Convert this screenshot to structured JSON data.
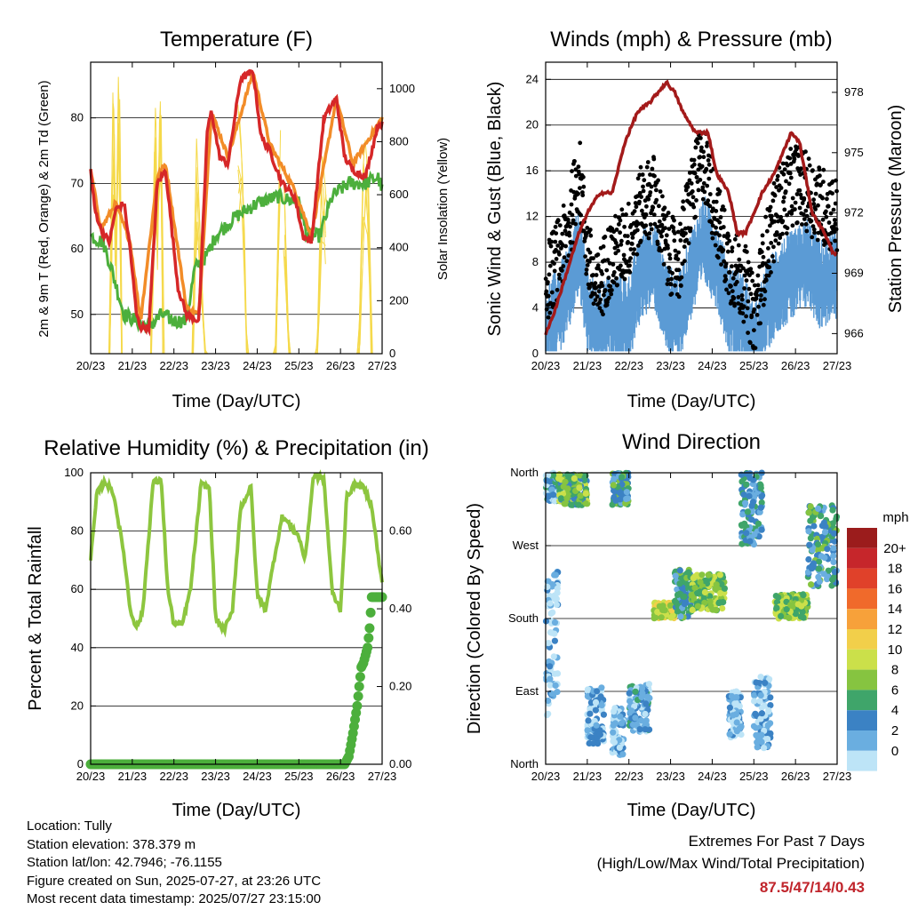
{
  "charts": {
    "temperature": {
      "title": "Temperature (F)",
      "xlabel": "Time (Day/UTC)",
      "ylabel_left": "2m & 9m T (Red, Orange) & 2m Td (Green)",
      "ylabel_right": "Solar Insolation (Yellow)"
    },
    "winds": {
      "title": "Winds (mph) & Pressure (mb)",
      "xlabel": "Time (Day/UTC)",
      "ylabel_left": "Sonic Wind & Gust (Blue, Black)",
      "ylabel_right": "Station Pressure (Maroon)"
    },
    "humidity": {
      "title": "Relative Humidity (%) & Precipitation (in)",
      "xlabel": "Time (Day/UTC)",
      "ylabel_left": "Percent & Total Rainfall"
    },
    "direction": {
      "title": "Wind Direction",
      "xlabel": "Time (Day/UTC)",
      "ylabel_left": "Direction (Colored By Speed)",
      "legend_title": "mph"
    }
  },
  "footer": {
    "location": "Location: Tully",
    "elevation": "Station elevation: 378.379 m",
    "latlon": "Station lat/lon: 42.7946; -76.1155",
    "created": "Figure created on Sun, 2025-07-27, at 23:26 UTC",
    "recent": "Most recent data timestamp: 2025/07/27 23:15:00"
  },
  "extremes": {
    "heading": "Extremes For Past 7 Days",
    "subheading": "(High/Low/Max Wind/Total Precipitation)",
    "values": "87.5/47/14/0.43",
    "value_color": "#c0242b"
  },
  "colors": {
    "temp_2m": "#d62728",
    "temp_9m": "#f28c28",
    "dewpoint": "#4caf3c",
    "solar": "#f5d94a",
    "wind": "#5b9bd5",
    "gust": "#000000",
    "pressure": "#a31a1a",
    "rh": "#8dc63f",
    "precip": "#4caf3c"
  },
  "chart_data": [
    {
      "type": "line",
      "title": "Temperature (F)",
      "x_ticks": [
        "20/23",
        "21/23",
        "22/23",
        "23/23",
        "24/23",
        "25/23",
        "26/23",
        "27/23"
      ],
      "xlim": [
        0,
        7
      ],
      "ylim": [
        44,
        88.5
      ],
      "yticks": [
        50,
        60,
        70,
        80
      ],
      "ylim_right": [
        0,
        1100
      ],
      "yticks_right": [
        0,
        200,
        400,
        600,
        800,
        1000
      ],
      "grid": true,
      "series": [
        {
          "name": "2m T",
          "color": "red",
          "axis": "left",
          "x": [
            0,
            0.1,
            0.25,
            0.45,
            0.6,
            0.8,
            0.95,
            1.1,
            1.2,
            1.4,
            1.6,
            1.8,
            2.1,
            2.3,
            2.6,
            2.8,
            2.9,
            3.1,
            3.3,
            3.6,
            3.9,
            4.1,
            4.3,
            4.6,
            4.9,
            5.1,
            5.3,
            5.6,
            5.9,
            6.1,
            6.3,
            6.6,
            6.9,
            7
          ],
          "values": [
            72,
            66,
            63,
            61,
            66,
            67,
            60,
            50,
            48,
            48,
            70,
            72,
            54,
            50,
            49,
            78,
            81,
            74,
            73,
            86,
            87,
            77,
            75,
            70,
            68,
            62,
            61,
            80,
            83,
            74,
            72,
            71,
            79,
            79
          ]
        },
        {
          "name": "9m T",
          "color": "orange",
          "axis": "left",
          "x": [
            0,
            0.25,
            0.6,
            0.95,
            1.2,
            1.6,
            1.8,
            2.3,
            2.6,
            2.9,
            3.3,
            3.9,
            4.3,
            4.9,
            5.3,
            5.9,
            6.3,
            6.9,
            7
          ],
          "values": [
            72,
            63,
            67,
            61,
            49,
            71,
            73,
            51,
            50,
            81,
            74,
            87,
            76,
            69,
            62,
            83,
            73,
            79,
            80
          ]
        },
        {
          "name": "2m Td",
          "color": "green",
          "axis": "left",
          "x": [
            0,
            0.3,
            0.5,
            0.8,
            1.1,
            1.4,
            1.7,
            2.0,
            2.3,
            2.5,
            2.8,
            3.0,
            3.5,
            4.0,
            4.5,
            5.0,
            5.2,
            5.5,
            5.8,
            6.2,
            6.6,
            6.9,
            7
          ],
          "values": [
            62,
            61,
            57,
            50,
            49,
            48,
            50,
            49,
            49,
            57,
            59,
            62,
            65,
            67,
            68,
            67,
            62,
            62,
            68,
            70,
            70,
            71,
            69
          ]
        },
        {
          "name": "Solar",
          "color": "yellow",
          "axis": "right",
          "x": [
            0.45,
            0.55,
            0.6,
            0.68,
            0.75,
            1.45,
            1.55,
            1.6,
            1.68,
            1.75,
            2.45,
            2.55,
            2.62,
            2.75,
            3.45,
            3.55,
            3.65,
            3.75,
            4.45,
            4.55,
            4.65,
            4.75,
            5.45,
            5.55,
            5.65,
            5.75,
            6.45,
            6.55,
            6.65,
            6.75
          ],
          "values": [
            0,
            1000,
            400,
            1100,
            0,
            0,
            1100,
            500,
            1050,
            0,
            0,
            800,
            600,
            0,
            0,
            900,
            700,
            0,
            0,
            850,
            650,
            0,
            0,
            800,
            600,
            0,
            0,
            820,
            750,
            0
          ]
        }
      ]
    },
    {
      "type": "line",
      "title": "Winds (mph) & Pressure (mb)",
      "x_ticks": [
        "20/23",
        "21/23",
        "22/23",
        "23/23",
        "24/23",
        "25/23",
        "26/23",
        "27/23"
      ],
      "xlim": [
        0,
        7
      ],
      "ylim": [
        0,
        25.5
      ],
      "yticks": [
        0,
        4,
        8,
        12,
        16,
        20,
        24
      ],
      "ylim_right": [
        965,
        979.5
      ],
      "yticks_right": [
        966,
        969,
        972,
        975,
        978
      ],
      "grid": true,
      "series": [
        {
          "name": "Sonic Wind",
          "color": "blue",
          "axis": "left",
          "x": [
            0,
            0.5,
            0.8,
            1.0,
            1.2,
            1.5,
            2.0,
            2.3,
            2.6,
            2.9,
            3.2,
            3.5,
            3.8,
            4.1,
            4.4,
            4.8,
            5.0,
            5.3,
            5.6,
            6.0,
            6.3,
            6.6,
            7
          ],
          "values": [
            3,
            6,
            10,
            5,
            3,
            4,
            4,
            8,
            9,
            5,
            4,
            8,
            11,
            9,
            5,
            4,
            1,
            5,
            7,
            8,
            9,
            7,
            8
          ]
        },
        {
          "name": "Gust",
          "color": "black",
          "axis": "left",
          "x": [
            0,
            0.5,
            0.8,
            1.0,
            1.2,
            1.5,
            2.0,
            2.3,
            2.6,
            2.9,
            3.2,
            3.5,
            3.8,
            4.1,
            4.4,
            4.8,
            5.0,
            5.3,
            5.6,
            6.0,
            6.3,
            6.6,
            7
          ],
          "values": [
            6,
            10,
            16,
            9,
            5,
            8,
            10,
            13,
            14,
            9,
            8,
            14,
            17,
            12,
            8,
            6,
            3,
            9,
            13,
            15,
            14,
            13,
            12
          ]
        },
        {
          "name": "Pressure",
          "color": "maroon",
          "axis": "right",
          "x": [
            0,
            0.2,
            0.5,
            0.8,
            1.0,
            1.3,
            1.6,
            1.9,
            2.2,
            2.5,
            2.7,
            2.9,
            3.1,
            3.3,
            3.6,
            3.9,
            4.1,
            4.4,
            4.6,
            4.8,
            5.0,
            5.2,
            5.5,
            5.7,
            5.9,
            6.1,
            6.4,
            6.7,
            6.9,
            7
          ],
          "values": [
            966,
            967,
            969,
            971,
            972,
            973,
            973,
            975.5,
            977,
            977.5,
            978,
            978.5,
            978,
            977,
            976,
            976,
            974,
            973,
            971,
            971,
            972,
            973,
            974,
            975,
            976,
            975.5,
            972,
            971,
            970,
            970
          ]
        }
      ]
    },
    {
      "type": "line",
      "title": "Relative Humidity (%) & Precipitation (in)",
      "x_ticks": [
        "20/23",
        "21/23",
        "22/23",
        "23/23",
        "24/23",
        "25/23",
        "26/23",
        "27/23"
      ],
      "xlim": [
        0,
        7
      ],
      "ylim": [
        0,
        100
      ],
      "yticks": [
        0,
        20,
        40,
        60,
        80,
        100
      ],
      "ylim_right": [
        0,
        0.75
      ],
      "yticks_right": [
        "0.00",
        "0.20",
        "0.40",
        "0.60"
      ],
      "grid": true,
      "series": [
        {
          "name": "RH",
          "color": "lightgreen",
          "axis": "left",
          "x": [
            0,
            0.15,
            0.35,
            0.55,
            0.8,
            0.95,
            1.1,
            1.25,
            1.5,
            1.7,
            1.85,
            2.0,
            2.2,
            2.4,
            2.65,
            2.85,
            3.0,
            3.2,
            3.4,
            3.6,
            3.85,
            4.0,
            4.2,
            4.4,
            4.6,
            4.8,
            5.0,
            5.15,
            5.35,
            5.6,
            5.8,
            6.0,
            6.15,
            6.35,
            6.55,
            6.75,
            6.9,
            7
          ],
          "values": [
            70,
            93,
            97,
            93,
            72,
            53,
            47,
            52,
            97,
            97,
            60,
            48,
            48,
            60,
            96,
            95,
            50,
            46,
            52,
            88,
            95,
            58,
            53,
            70,
            85,
            82,
            78,
            70,
            99,
            98,
            59,
            53,
            92,
            96,
            95,
            89,
            72,
            62
          ]
        },
        {
          "name": "Precipitation",
          "color": "green",
          "axis": "right",
          "x": [
            0,
            5.5,
            6.1,
            6.2,
            6.3,
            6.4,
            6.45,
            6.5,
            6.55,
            6.6,
            6.65,
            6.7,
            6.75,
            6.8,
            7
          ],
          "values": [
            0,
            0,
            0,
            0.02,
            0.08,
            0.15,
            0.2,
            0.25,
            0.26,
            0.28,
            0.3,
            0.35,
            0.43,
            0.43,
            0.43
          ]
        }
      ]
    },
    {
      "type": "scatter",
      "title": "Wind Direction",
      "x_ticks": [
        "20/23",
        "21/23",
        "22/23",
        "23/23",
        "24/23",
        "25/23",
        "26/23",
        "27/23"
      ],
      "xlim": [
        0,
        7
      ],
      "y_categories": [
        "North",
        "East",
        "South",
        "West",
        "North"
      ],
      "ylim": [
        0,
        360
      ],
      "colorbar": {
        "title": "mph",
        "labels": [
          "20+",
          "18",
          "16",
          "14",
          "12",
          "10",
          "8",
          "6",
          "4",
          "2",
          "0"
        ],
        "colors": [
          "#9b1c1c",
          "#c6262b",
          "#e0412a",
          "#f06a2b",
          "#f7a13a",
          "#f2cf4a",
          "#cbe04a",
          "#86c440",
          "#3fa56a",
          "#3b82c4",
          "#6aaee0",
          "#bde4f7"
        ]
      },
      "clusters": [
        {
          "x0": 0,
          "x1": 0.3,
          "y0": 325,
          "y1": 360,
          "speed": 4
        },
        {
          "x0": 0.3,
          "x1": 1.0,
          "y0": 320,
          "y1": 358,
          "speed": 8
        },
        {
          "x0": 0,
          "x1": 0.3,
          "y0": 60,
          "y1": 240,
          "speed": 2
        },
        {
          "x0": 1.0,
          "x1": 1.4,
          "y0": 25,
          "y1": 95,
          "speed": 3
        },
        {
          "x0": 1.6,
          "x1": 2.0,
          "y0": 320,
          "y1": 360,
          "speed": 6
        },
        {
          "x0": 1.6,
          "x1": 1.9,
          "y0": 10,
          "y1": 70,
          "speed": 3
        },
        {
          "x0": 2.0,
          "x1": 2.5,
          "y0": 40,
          "y1": 100,
          "speed": 4
        },
        {
          "x0": 2.6,
          "x1": 3.1,
          "y0": 180,
          "y1": 200,
          "speed": 11
        },
        {
          "x0": 3.1,
          "x1": 3.5,
          "y0": 180,
          "y1": 240,
          "speed": 6
        },
        {
          "x0": 3.5,
          "x1": 4.3,
          "y0": 190,
          "y1": 235,
          "speed": 9
        },
        {
          "x0": 4.4,
          "x1": 4.7,
          "y0": 30,
          "y1": 90,
          "speed": 2
        },
        {
          "x0": 4.7,
          "x1": 5.2,
          "y0": 270,
          "y1": 360,
          "speed": 5
        },
        {
          "x0": 5.0,
          "x1": 5.4,
          "y0": 20,
          "y1": 110,
          "speed": 3
        },
        {
          "x0": 5.5,
          "x1": 6.3,
          "y0": 180,
          "y1": 210,
          "speed": 9
        },
        {
          "x0": 6.3,
          "x1": 7.0,
          "y0": 220,
          "y1": 320,
          "speed": 6
        }
      ]
    }
  ]
}
